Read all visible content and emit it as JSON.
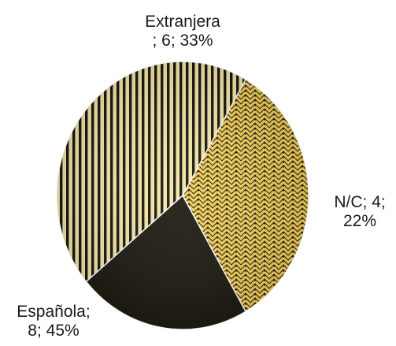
{
  "chart_data": {
    "type": "pie",
    "title": "",
    "slices": [
      {
        "category": "Extranjera",
        "value": 6,
        "percent": "33%",
        "label_lines": [
          "Extranjera",
          "; 6; 33%"
        ],
        "pattern": "zigzag",
        "colors": {
          "light": "#f2d15e",
          "dark": "#2a1f0e"
        }
      },
      {
        "category": "N/C",
        "value": 4,
        "percent": "22%",
        "label_lines": [
          "N/C; 4;",
          "22%"
        ],
        "pattern": "solid",
        "colors": {
          "light": "#1f1c12",
          "dark": "#1f1c12"
        }
      },
      {
        "category": "Española",
        "value": 8,
        "percent": "45%",
        "label_lines": [
          "Española;",
          "8; 45%"
        ],
        "pattern": "vertical-stripes",
        "colors": {
          "light": "#f3e7a8",
          "dark": "#1b1810"
        }
      }
    ],
    "start_angle_deg": -60,
    "legend": "none"
  }
}
